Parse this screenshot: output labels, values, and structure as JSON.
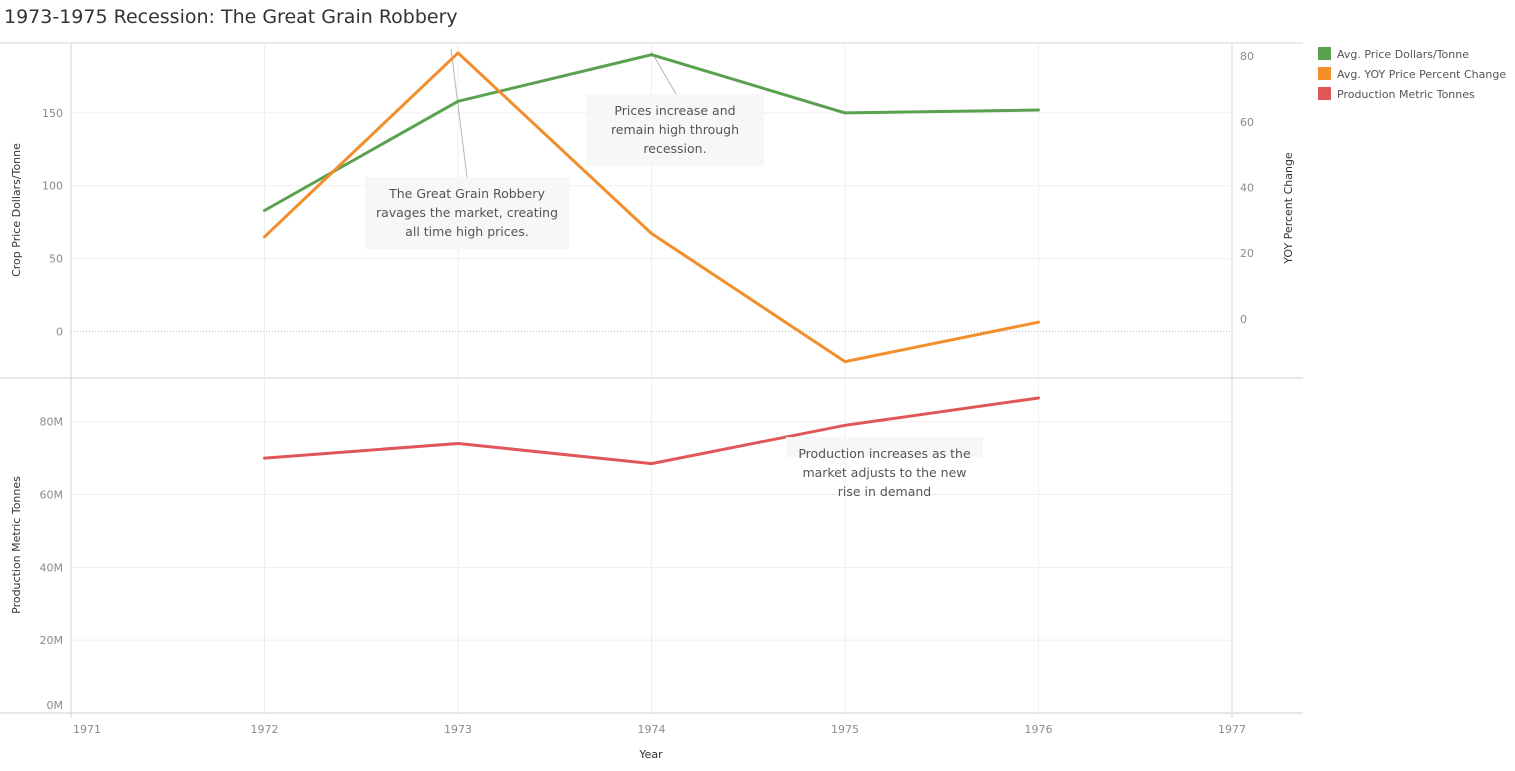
{
  "title": "1973-1975 Recession: The Great Grain Robbery",
  "colors": {
    "price": "#59a14f",
    "yoy": "#f28e2b",
    "production": "#e15759"
  },
  "chart_data": {
    "type": "line",
    "x": [
      1972,
      1973,
      1974,
      1975,
      1976
    ],
    "xlabel": "Year",
    "xlim": [
      1971,
      1977
    ],
    "x_ticks": [
      "1971",
      "1972",
      "1973",
      "1974",
      "1975",
      "1976",
      "1977"
    ],
    "panels": [
      {
        "ylabel_left": "Crop Price Dollars/Tonne",
        "ylabel_right": "YOY Percent Change",
        "ylim_left": [
          -32,
          198
        ],
        "ylim_right": [
          -18,
          84
        ],
        "y_ticks_left": [
          "0",
          "50",
          "100",
          "150"
        ],
        "y_ticks_right": [
          "0",
          "20",
          "40",
          "60",
          "80"
        ],
        "series": [
          {
            "name": "Avg. Price Dollars/Tonne",
            "axis": "left",
            "values": [
              83,
              158,
              190,
              150,
              152
            ]
          },
          {
            "name": "Avg. YOY Price Percent Change",
            "axis": "right",
            "values": [
              25,
              81,
              26,
              -13,
              -1
            ]
          }
        ]
      },
      {
        "ylabel_left": "Production Metric Tonnes",
        "ylim_left": [
          0,
          92
        ],
        "y_ticks_left": [
          "0M",
          "20M",
          "40M",
          "60M",
          "80M"
        ],
        "y_tick_values": [
          0,
          20,
          40,
          60,
          80
        ],
        "series": [
          {
            "name": "Production Metric Tonnes",
            "axis": "left",
            "values": [
              70,
              74,
              68.5,
              79,
              86.5
            ]
          }
        ]
      }
    ],
    "legend": [
      "Avg. Price Dollars/Tonne",
      "Avg. YOY Price Percent Change",
      "Production Metric Tonnes"
    ],
    "legend_position": "top-right",
    "annotations": [
      {
        "lines": [
          "The Great Grain Robbery",
          "ravages the market, creating",
          "all time high prices."
        ]
      },
      {
        "lines": [
          "Prices increase and",
          "remain high through",
          "recession."
        ]
      },
      {
        "lines": [
          "Production increases as the",
          "market adjusts to the new",
          "rise in demand"
        ]
      }
    ]
  }
}
